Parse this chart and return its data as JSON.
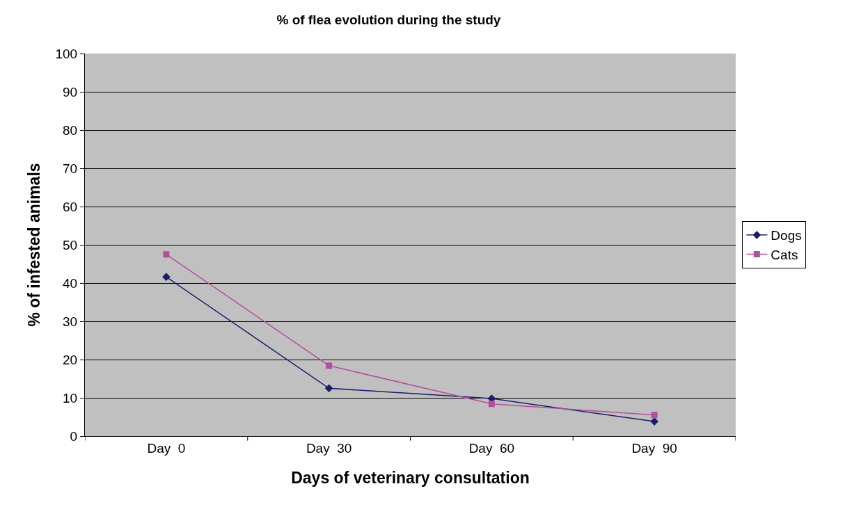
{
  "chart_data": {
    "type": "line",
    "title": "% of flea evolution during the study",
    "xlabel": "Days of veterinary consultation",
    "ylabel": "% of infested animals",
    "categories": [
      "Day  0",
      "Day  30",
      "Day  60",
      "Day  90"
    ],
    "series": [
      {
        "name": "Dogs",
        "color": "#1c1c6b",
        "marker": "diamond",
        "values": [
          41.6,
          12.5,
          9.8,
          3.8
        ]
      },
      {
        "name": "Cats",
        "color": "#b24e9e",
        "marker": "square",
        "values": [
          47.5,
          18.4,
          8.4,
          5.5
        ]
      }
    ],
    "ylim": [
      0,
      100
    ],
    "yticks": [
      0,
      10,
      20,
      30,
      40,
      50,
      60,
      70,
      80,
      90,
      100
    ],
    "grid": "y",
    "legend": "right",
    "line_style": "solid"
  }
}
